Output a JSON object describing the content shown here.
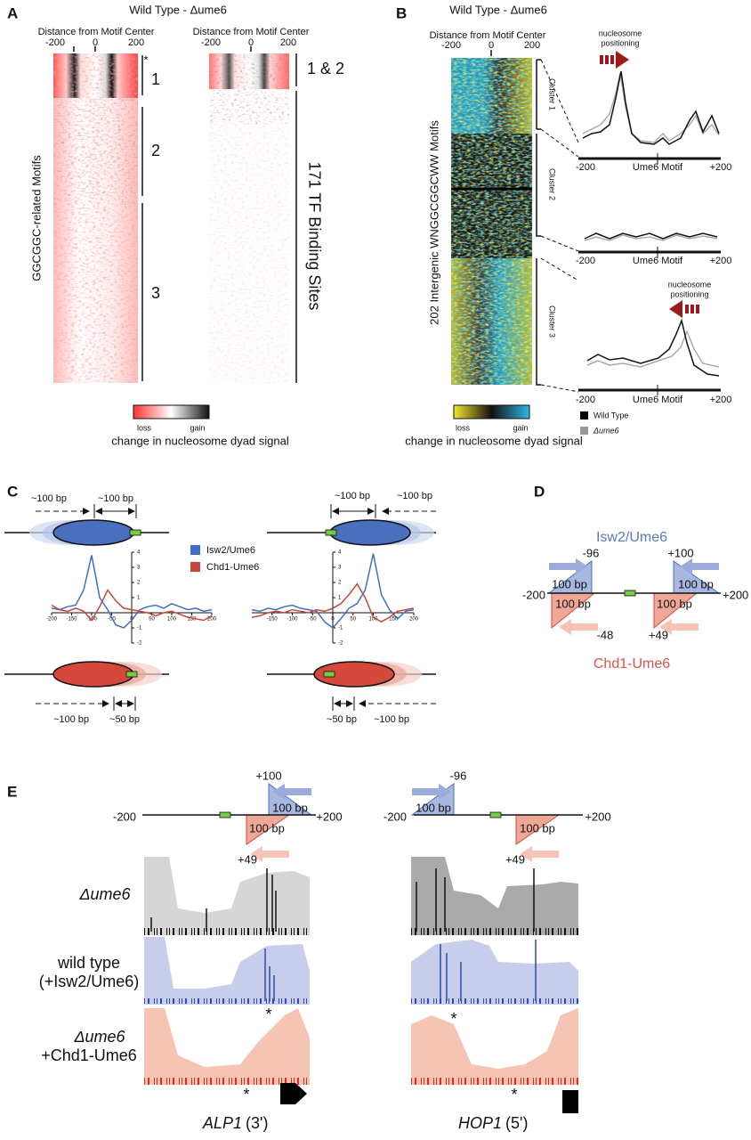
{
  "A": {
    "label": "A",
    "title": "Wild Type - Δume6",
    "left": {
      "axis_title": "Distance from Motif Center",
      "ticks": [
        -200,
        0,
        200
      ],
      "y_title": "GGCGGC-related Motifs",
      "star": "*",
      "clusters": [
        "1",
        "2",
        "3"
      ]
    },
    "right": {
      "axis_title": "Distance from Motif Center",
      "ticks": [
        -200,
        0,
        200
      ],
      "clusters": [
        "1 & 2",
        "171 TF Binding Sites"
      ]
    },
    "colorbar": {
      "low": "loss",
      "high": "gain",
      "caption": "change in nucleosome dyad signal"
    }
  },
  "B": {
    "label": "B",
    "title": "Wild Type - Δume6",
    "axis_title": "Distance from Motif Center",
    "ticks": [
      -200,
      0,
      200
    ],
    "y_title": "202 Intergenic WNGGCGGCWW Motifs",
    "clusters": [
      "Cluster 1",
      "Cluster 2",
      "Cluster 3"
    ],
    "annotation": [
      "nucleosome",
      "positioning"
    ],
    "profile_axis": [
      "-200",
      "Ume6 Motif",
      "+200"
    ],
    "legend": [
      {
        "name": "Wild Type",
        "color": "#000000"
      },
      {
        "name": "Δume6",
        "color": "#999999"
      }
    ],
    "colorbar": {
      "low": "loss",
      "high": "gain",
      "caption": "change in nucleosome dyad signal"
    }
  },
  "C": {
    "label": "C",
    "distances": {
      "left_top": [
        "~100 bp",
        "~100 bp"
      ],
      "left_bottom": [
        "~100 bp",
        "~50 bp"
      ],
      "right_top": [
        "~100 bp",
        "~100 bp"
      ],
      "right_bottom": [
        "~50 bp",
        "~100 bp"
      ]
    },
    "plots": [
      {
        "type": "line",
        "xlim": [
          -200,
          200
        ],
        "ylim": [
          -2,
          4
        ],
        "xticks": [
          -200,
          -150,
          -100,
          -50,
          0,
          50,
          100,
          150,
          200
        ],
        "yticks": [
          -2,
          -1,
          1,
          2,
          3,
          4
        ],
        "x": [
          -200,
          -180,
          -160,
          -140,
          -120,
          -100,
          -80,
          -60,
          -40,
          -20,
          0,
          20,
          40,
          60,
          80,
          100,
          120,
          140,
          160,
          180,
          200
        ],
        "series": [
          {
            "name": "Isw2/Ume6",
            "color": "#3f6fc4",
            "values": [
              0.3,
              0.2,
              0.4,
              0.5,
              1.5,
              3.8,
              1.0,
              0.2,
              -0.8,
              -1.0,
              -0.5,
              0.2,
              0.4,
              0.5,
              0.3,
              0.6,
              0.4,
              0.2,
              0.3,
              0.1,
              0.2
            ]
          },
          {
            "name": "Chd1-Ume6",
            "color": "#c9453c",
            "values": [
              0.5,
              0.2,
              0.1,
              0.3,
              0.1,
              -0.5,
              0.4,
              1.5,
              0.8,
              0.3,
              0.2,
              0.1,
              0.0,
              -0.2,
              0.0,
              0.1,
              -0.1,
              -0.3,
              -0.4,
              -0.5,
              -0.2
            ]
          }
        ]
      },
      {
        "type": "line",
        "xlim": [
          -200,
          200
        ],
        "ylim": [
          -2,
          4
        ],
        "xticks": [
          -150,
          -100,
          -50,
          0,
          50,
          100,
          150,
          200
        ],
        "yticks": [
          -2,
          -1,
          1,
          2,
          3,
          4
        ],
        "x": [
          -200,
          -180,
          -160,
          -140,
          -120,
          -100,
          -80,
          -60,
          -40,
          -20,
          0,
          20,
          40,
          60,
          80,
          100,
          120,
          140,
          160,
          180,
          200
        ],
        "series": [
          {
            "name": "Isw2/Ume6",
            "color": "#3f6fc4",
            "values": [
              0.2,
              0.1,
              0.3,
              0.2,
              0.4,
              0.5,
              0.3,
              0.2,
              0.1,
              -0.6,
              -1.0,
              -0.4,
              0.3,
              0.6,
              1.5,
              3.9,
              1.2,
              0.2,
              -0.4,
              0.1,
              0.2
            ]
          },
          {
            "name": "Chd1-Ume6",
            "color": "#c9453c",
            "values": [
              -0.3,
              -0.2,
              0.0,
              0.1,
              0.0,
              0.2,
              0.1,
              0.0,
              0.2,
              0.1,
              0.3,
              0.6,
              1.2,
              1.9,
              1.0,
              -0.3,
              -0.6,
              -0.3,
              0.1,
              0.2,
              0.3
            ]
          }
        ]
      }
    ]
  },
  "D": {
    "label": "D",
    "isw2": "Isw2/Ume6",
    "chd1": "Chd1-Ume6",
    "ends": [
      "-200",
      "+200"
    ],
    "positions": [
      "-96",
      "+100",
      "-48",
      "+49"
    ],
    "width": "100 bp"
  },
  "E": {
    "label": "E",
    "ends": [
      "-200",
      "+200"
    ],
    "width": "100 bp",
    "star": "*",
    "left": {
      "positions": [
        "+100",
        "+49"
      ],
      "gene": "ALP1",
      "gene_suffix": "(3')"
    },
    "right": {
      "positions": [
        "-96",
        "+49"
      ],
      "gene": "HOP1",
      "gene_suffix": "(5')"
    },
    "tracks": [
      "Δume6",
      "wild type",
      "(+Isw2/Ume6)",
      "Δume6",
      "+Chd1-Ume6"
    ]
  }
}
